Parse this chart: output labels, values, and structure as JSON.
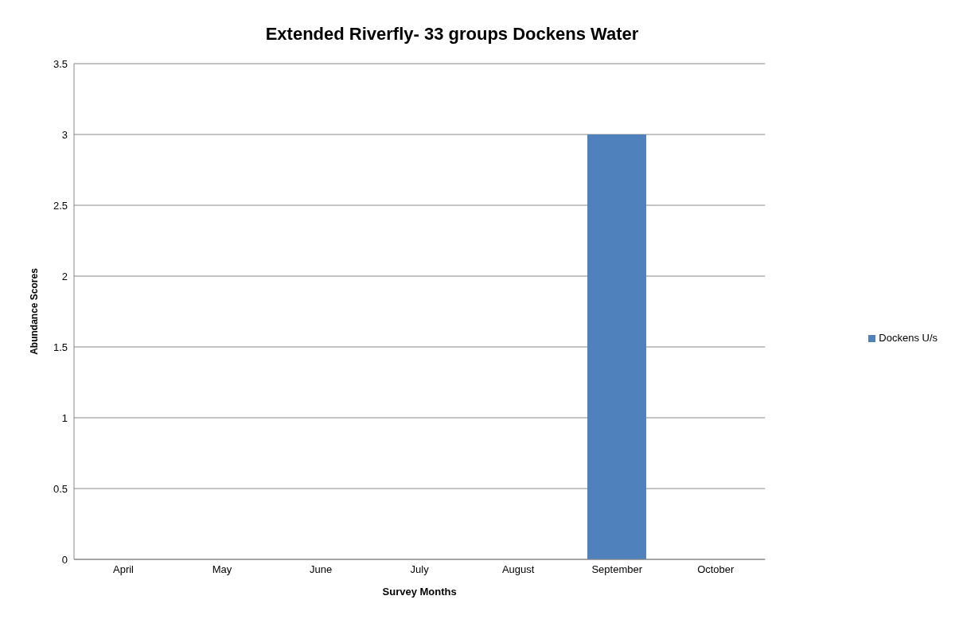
{
  "chart_data": {
    "type": "bar",
    "title": "Extended Riverfly- 33 groups Dockens Water",
    "xlabel": "Survey Months",
    "ylabel": "Abundance Scores",
    "categories": [
      "April",
      "May",
      "June",
      "July",
      "August",
      "September",
      "October"
    ],
    "series": [
      {
        "name": "Dockens U/s",
        "color": "#4f81bd",
        "values": [
          0,
          0,
          0,
          0,
          0,
          3,
          0
        ]
      }
    ],
    "ylim": [
      0,
      3.5
    ],
    "yticks": [
      0,
      0.5,
      1,
      1.5,
      2,
      2.5,
      3,
      3.5
    ],
    "grid": "y",
    "legend": "right"
  }
}
